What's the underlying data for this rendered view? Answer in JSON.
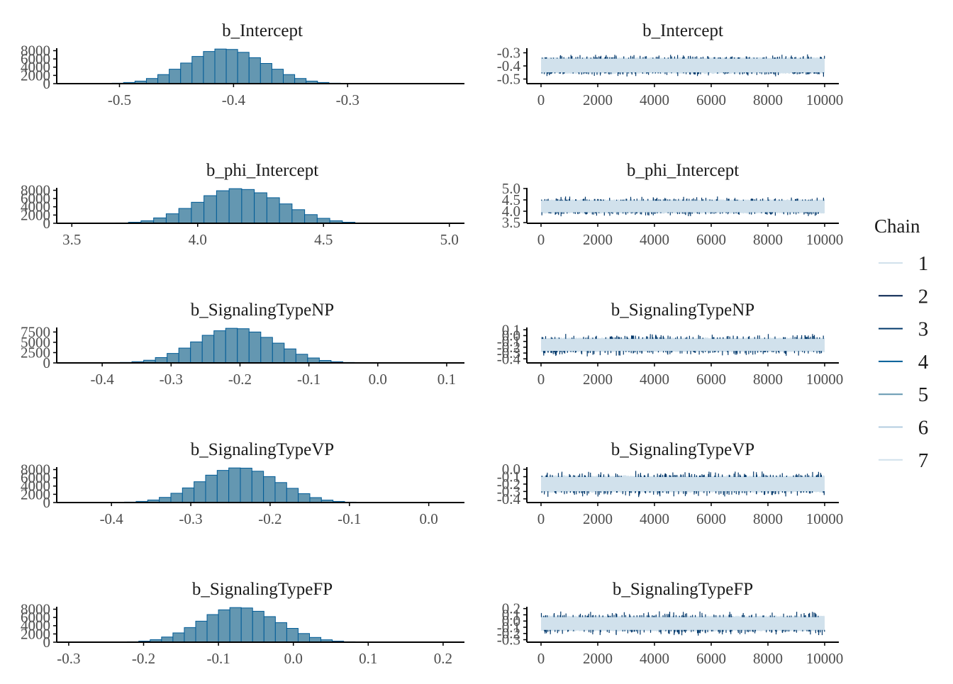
{
  "legend": {
    "title": "Chain",
    "chains": [
      "1",
      "2",
      "3",
      "4",
      "5",
      "6",
      "7"
    ],
    "colors": [
      "#d1e1ec",
      "#011f4b",
      "#03396c",
      "#005b96",
      "#6497b1",
      "#b3cde0",
      "#d1e1ec"
    ]
  },
  "colors": {
    "hist_fill": "#6497b1",
    "hist_stroke": "#005b96",
    "trace_band": "#d1e1ec",
    "trace_spike": "#03396c",
    "axis": "#000000"
  },
  "chart_data": [
    {
      "type": "bar",
      "panel": "histogram",
      "title": "b_Intercept",
      "x_ticks": [
        "-0.5",
        "-0.4",
        "-0.3"
      ],
      "x_tick_values": [
        -0.5,
        -0.4,
        -0.3
      ],
      "xlim": [
        -0.555,
        -0.1976
      ],
      "y_ticks": [
        "0",
        "2000",
        "4000",
        "6000",
        "8000"
      ],
      "y_tick_values": [
        0,
        2000,
        4000,
        6000,
        8000
      ],
      "ylim": [
        0,
        8600
      ],
      "bins": {
        "start": -0.5364,
        "width": 0.01,
        "counts": [
          5,
          15,
          40,
          110,
          280,
          620,
          1250,
          2200,
          3500,
          5000,
          6600,
          7800,
          8400,
          8300,
          7600,
          6300,
          4900,
          3500,
          2200,
          1250,
          620,
          280,
          110,
          40,
          15,
          5
        ]
      }
    },
    {
      "type": "line",
      "panel": "trace",
      "title": "b_Intercept",
      "x_ticks": [
        "0",
        "2000",
        "4000",
        "6000",
        "8000",
        "10000"
      ],
      "x_tick_values": [
        0,
        2000,
        4000,
        6000,
        8000,
        10000
      ],
      "xlim": [
        -500,
        10500
      ],
      "y_ticks": [
        "-0.5",
        "-0.4",
        "-0.3"
      ],
      "y_tick_values": [
        -0.5,
        -0.4,
        -0.3
      ],
      "ylim": [
        -0.535,
        -0.265
      ],
      "center": -0.397,
      "band_half_width": 0.065,
      "spike_max": 0.035,
      "iterations": 10000
    },
    {
      "type": "bar",
      "panel": "histogram",
      "title": "b_phi_Intercept",
      "x_ticks": [
        "3.5",
        "4.0",
        "4.5",
        "5.0"
      ],
      "x_tick_values": [
        3.5,
        4.0,
        4.5,
        5.0
      ],
      "xlim": [
        3.44,
        5.06
      ],
      "y_ticks": [
        "0",
        "2000",
        "4000",
        "6000",
        "8000"
      ],
      "y_tick_values": [
        0,
        2000,
        4000,
        6000,
        8000
      ],
      "ylim": [
        0,
        8600
      ],
      "bins": {
        "start": 3.525,
        "width": 0.05,
        "counts": [
          3,
          10,
          30,
          90,
          250,
          600,
          1300,
          2300,
          3600,
          5100,
          6700,
          7900,
          8400,
          8200,
          7400,
          6200,
          4700,
          3300,
          2100,
          1200,
          600,
          250,
          90,
          30,
          10,
          3
        ]
      }
    },
    {
      "type": "line",
      "panel": "trace",
      "title": "b_phi_Intercept",
      "x_ticks": [
        "0",
        "2000",
        "4000",
        "6000",
        "8000",
        "10000"
      ],
      "x_tick_values": [
        0,
        2000,
        4000,
        6000,
        8000,
        10000
      ],
      "xlim": [
        -500,
        10500
      ],
      "y_ticks": [
        "3.5",
        "4.0",
        "4.5",
        "5.0"
      ],
      "y_tick_values": [
        3.5,
        4.0,
        4.5,
        5.0
      ],
      "ylim": [
        3.47,
        5.03
      ],
      "center": 4.21,
      "band_half_width": 0.32,
      "spike_max": 0.2,
      "iterations": 10000
    },
    {
      "type": "bar",
      "panel": "histogram",
      "title": "b_SignalingTypeNP",
      "x_ticks": [
        "-0.4",
        "-0.3",
        "-0.2",
        "-0.1",
        "0.0",
        "0.1"
      ],
      "x_tick_values": [
        -0.4,
        -0.3,
        -0.2,
        -0.1,
        0.0,
        0.1
      ],
      "xlim": [
        -0.466,
        0.1258
      ],
      "y_ticks": [
        "0",
        "2500",
        "5000",
        "7500"
      ],
      "y_tick_values": [
        0,
        2500,
        5000,
        7500
      ],
      "ylim": [
        0,
        8600
      ],
      "bins": {
        "start": -0.4248,
        "width": 0.017,
        "counts": [
          5,
          15,
          45,
          120,
          300,
          650,
          1300,
          2300,
          3600,
          5100,
          6700,
          7800,
          8400,
          8300,
          7500,
          6200,
          4800,
          3400,
          2100,
          1200,
          600,
          280,
          110,
          40,
          12,
          4
        ]
      }
    },
    {
      "type": "line",
      "panel": "trace",
      "title": "b_SignalingTypeNP",
      "x_ticks": [
        "0",
        "2000",
        "4000",
        "6000",
        "8000",
        "10000"
      ],
      "x_tick_values": [
        0,
        2000,
        4000,
        6000,
        8000,
        10000
      ],
      "xlim": [
        -500,
        10500
      ],
      "y_ticks": [
        "-0.4",
        "-0.3",
        "-0.2",
        "-0.1",
        "0.0",
        "0.1"
      ],
      "y_tick_values": [
        -0.4,
        -0.3,
        -0.2,
        -0.1,
        0.0,
        0.1
      ],
      "ylim": [
        -0.47,
        0.14
      ],
      "center": -0.16,
      "band_half_width": 0.13,
      "spike_max": 0.1,
      "iterations": 10000
    },
    {
      "type": "bar",
      "panel": "histogram",
      "title": "b_SignalingTypeVP",
      "x_ticks": [
        "-0.4",
        "-0.3",
        "-0.2",
        "-0.1",
        "0.0"
      ],
      "x_tick_values": [
        -0.4,
        -0.3,
        -0.2,
        -0.1,
        0.0
      ],
      "xlim": [
        -0.469,
        0.045
      ],
      "y_ticks": [
        "0",
        "2000",
        "4000",
        "6000",
        "8000"
      ],
      "y_tick_values": [
        0,
        2000,
        4000,
        6000,
        8000
      ],
      "ylim": [
        0,
        8600
      ],
      "bins": {
        "start": -0.4273,
        "width": 0.0146,
        "counts": [
          4,
          12,
          40,
          110,
          280,
          620,
          1250,
          2250,
          3550,
          5050,
          6650,
          7800,
          8400,
          8350,
          7600,
          6300,
          4850,
          3450,
          2150,
          1200,
          600,
          270,
          100,
          35,
          10,
          3
        ]
      }
    },
    {
      "type": "line",
      "panel": "trace",
      "title": "b_SignalingTypeVP",
      "x_ticks": [
        "0",
        "2000",
        "4000",
        "6000",
        "8000",
        "10000"
      ],
      "x_tick_values": [
        0,
        2000,
        4000,
        6000,
        8000,
        10000
      ],
      "xlim": [
        -500,
        10500
      ],
      "y_ticks": [
        "-0.4",
        "-0.3",
        "-0.2",
        "-0.1",
        "0.0"
      ],
      "y_tick_values": [
        -0.4,
        -0.3,
        -0.2,
        -0.1,
        0.0
      ],
      "ylim": [
        -0.45,
        0.03
      ],
      "center": -0.2,
      "band_half_width": 0.12,
      "spike_max": 0.09,
      "iterations": 10000
    },
    {
      "type": "bar",
      "panel": "histogram",
      "title": "b_SignalingTypeFP",
      "x_ticks": [
        "-0.3",
        "-0.2",
        "-0.1",
        "0.0",
        "0.1",
        "0.2"
      ],
      "x_tick_values": [
        -0.3,
        -0.2,
        -0.1,
        0.0,
        0.1,
        0.2
      ],
      "xlim": [
        -0.316,
        0.2285
      ],
      "y_ticks": [
        "0",
        "2000",
        "4000",
        "6000",
        "8000"
      ],
      "y_tick_values": [
        0,
        2000,
        4000,
        6000,
        8000
      ],
      "ylim": [
        0,
        8600
      ],
      "bins": {
        "start": -0.2672,
        "width": 0.0152,
        "counts": [
          3,
          10,
          35,
          100,
          260,
          600,
          1250,
          2250,
          3550,
          5100,
          6700,
          7850,
          8400,
          8300,
          7500,
          6200,
          4750,
          3350,
          2100,
          1150,
          580,
          260,
          100,
          35,
          10,
          3
        ]
      }
    },
    {
      "type": "line",
      "panel": "trace",
      "title": "b_SignalingTypeFP",
      "x_ticks": [
        "0",
        "2000",
        "4000",
        "6000",
        "8000",
        "10000"
      ],
      "x_tick_values": [
        0,
        2000,
        4000,
        6000,
        8000,
        10000
      ],
      "xlim": [
        -500,
        10500
      ],
      "y_ticks": [
        "-0.3",
        "-0.2",
        "-0.1",
        "0.0",
        "0.1",
        "0.2"
      ],
      "y_tick_values": [
        -0.3,
        -0.2,
        -0.1,
        0.0,
        0.1,
        0.2
      ],
      "ylim": [
        -0.34,
        0.23
      ],
      "center": -0.04,
      "band_half_width": 0.13,
      "spike_max": 0.1,
      "iterations": 10000
    }
  ]
}
